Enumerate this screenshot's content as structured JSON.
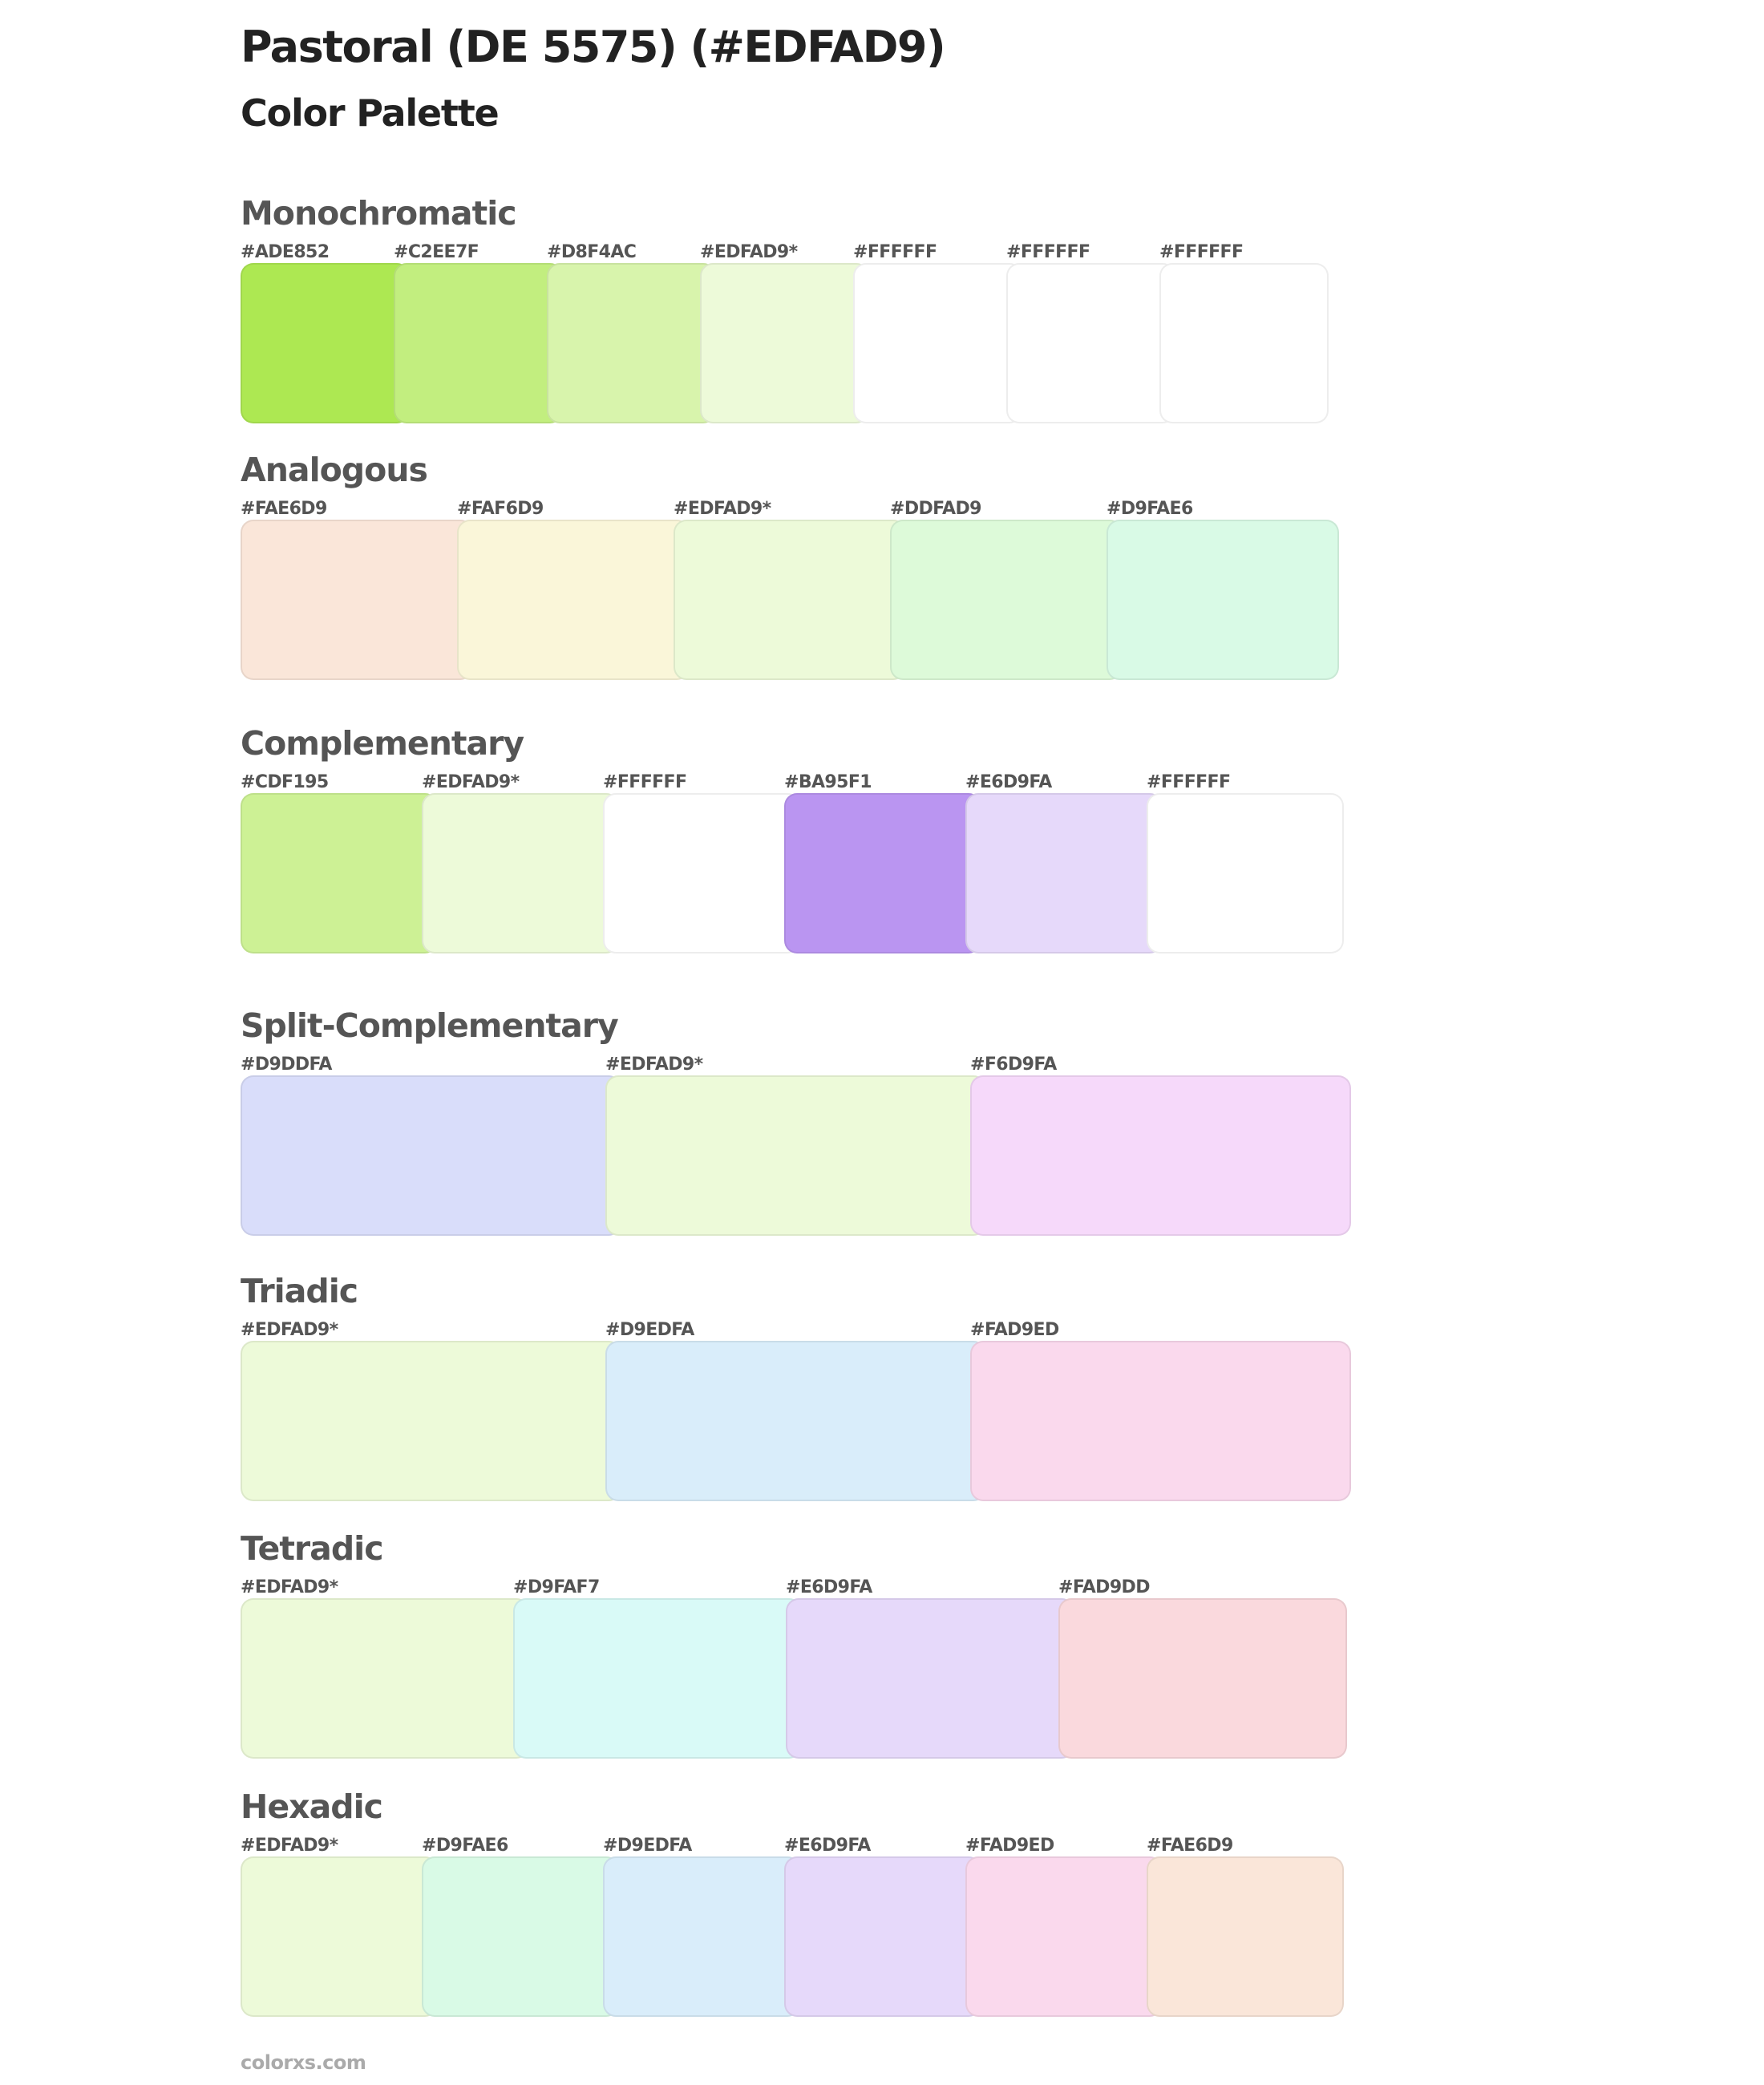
{
  "header": {
    "title": "Pastoral (DE 5575) (#EDFAD9)",
    "subtitle": "Color Palette"
  },
  "sections": [
    {
      "name": "Monochromatic",
      "swatches": [
        {
          "label": "#ADE852",
          "color": "#ADE852"
        },
        {
          "label": "#C2EE7F",
          "color": "#C2EE7F"
        },
        {
          "label": "#D8F4AC",
          "color": "#D8F4AC"
        },
        {
          "label": "#EDFAD9*",
          "color": "#EDFAD9"
        },
        {
          "label": "#FFFFFF",
          "color": "#FFFFFF"
        },
        {
          "label": "#FFFFFF",
          "color": "#FFFFFF"
        },
        {
          "label": "#FFFFFF",
          "color": "#FFFFFF"
        }
      ]
    },
    {
      "name": "Analogous",
      "swatches": [
        {
          "label": "#FAE6D9",
          "color": "#FAE6D9"
        },
        {
          "label": "#FAF6D9",
          "color": "#FAF6D9"
        },
        {
          "label": "#EDFAD9*",
          "color": "#EDFAD9"
        },
        {
          "label": "#DDFAD9",
          "color": "#DDFAD9"
        },
        {
          "label": "#D9FAE6",
          "color": "#D9FAE6"
        }
      ]
    },
    {
      "name": "Complementary",
      "swatches": [
        {
          "label": "#CDF195",
          "color": "#CDF195"
        },
        {
          "label": "#EDFAD9*",
          "color": "#EDFAD9"
        },
        {
          "label": "#FFFFFF",
          "color": "#FFFFFF"
        },
        {
          "label": "#BA95F1",
          "color": "#BA95F1"
        },
        {
          "label": "#E6D9FA",
          "color": "#E6D9FA"
        },
        {
          "label": "#FFFFFF",
          "color": "#FFFFFF"
        }
      ]
    },
    {
      "name": "Split-Complementary",
      "swatches": [
        {
          "label": "#D9DDFA",
          "color": "#D9DDFA"
        },
        {
          "label": "#EDFAD9*",
          "color": "#EDFAD9"
        },
        {
          "label": "#F6D9FA",
          "color": "#F6D9FA"
        }
      ]
    },
    {
      "name": "Triadic",
      "swatches": [
        {
          "label": "#EDFAD9*",
          "color": "#EDFAD9"
        },
        {
          "label": "#D9EDFA",
          "color": "#D9EDFA"
        },
        {
          "label": "#FAD9ED",
          "color": "#FAD9ED"
        }
      ]
    },
    {
      "name": "Tetradic",
      "swatches": [
        {
          "label": "#EDFAD9*",
          "color": "#EDFAD9"
        },
        {
          "label": "#D9FAF7",
          "color": "#D9FAF7"
        },
        {
          "label": "#E6D9FA",
          "color": "#E6D9FA"
        },
        {
          "label": "#FAD9DD",
          "color": "#FAD9DD"
        }
      ]
    },
    {
      "name": "Hexadic",
      "swatches": [
        {
          "label": "#EDFAD9*",
          "color": "#EDFAD9"
        },
        {
          "label": "#D9FAE6",
          "color": "#D9FAE6"
        },
        {
          "label": "#D9EDFA",
          "color": "#D9EDFA"
        },
        {
          "label": "#E6D9FA",
          "color": "#E6D9FA"
        },
        {
          "label": "#FAD9ED",
          "color": "#FAD9ED"
        },
        {
          "label": "#FAE6D9",
          "color": "#FAE6D9"
        }
      ]
    }
  ],
  "footer": {
    "text": "colorxs.com"
  }
}
